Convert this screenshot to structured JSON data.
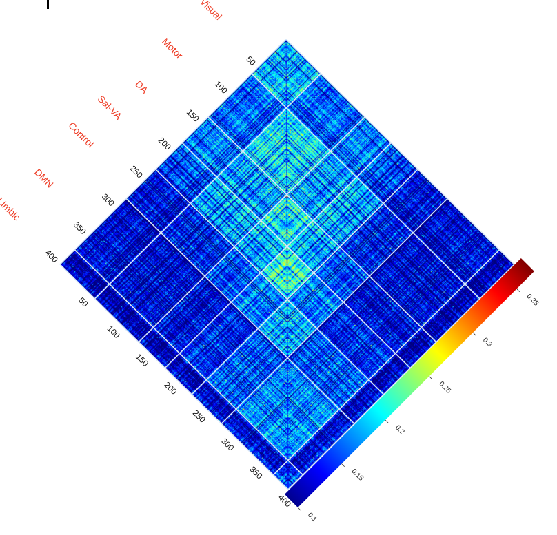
{
  "chart_data": {
    "type": "heatmap",
    "title": "",
    "matrix_size": 400,
    "networks": [
      {
        "name": "Visual",
        "start": 1,
        "end": 61
      },
      {
        "name": "Motor",
        "start": 62,
        "end": 138
      },
      {
        "name": "DA",
        "start": 139,
        "end": 184
      },
      {
        "name": "Sal-VA",
        "start": 185,
        "end": 231
      },
      {
        "name": "Control",
        "start": 232,
        "end": 283
      },
      {
        "name": "DMN",
        "start": 284,
        "end": 374
      },
      {
        "name": "Limbic",
        "start": 375,
        "end": 400
      }
    ],
    "row_ticks": [
      "50",
      "100",
      "150",
      "200",
      "250",
      "300",
      "350",
      "400"
    ],
    "col_ticks": [
      "50",
      "100",
      "150",
      "200",
      "250",
      "300",
      "350",
      "400"
    ],
    "colorbar": {
      "colormap": "jet",
      "range": [
        0.1,
        0.37
      ],
      "ticks": [
        "0.1",
        "0.15",
        "0.2",
        "0.25",
        "0.3",
        "0.35"
      ]
    },
    "gridlines": true,
    "network_boundary_color": "#d8e8f8"
  }
}
